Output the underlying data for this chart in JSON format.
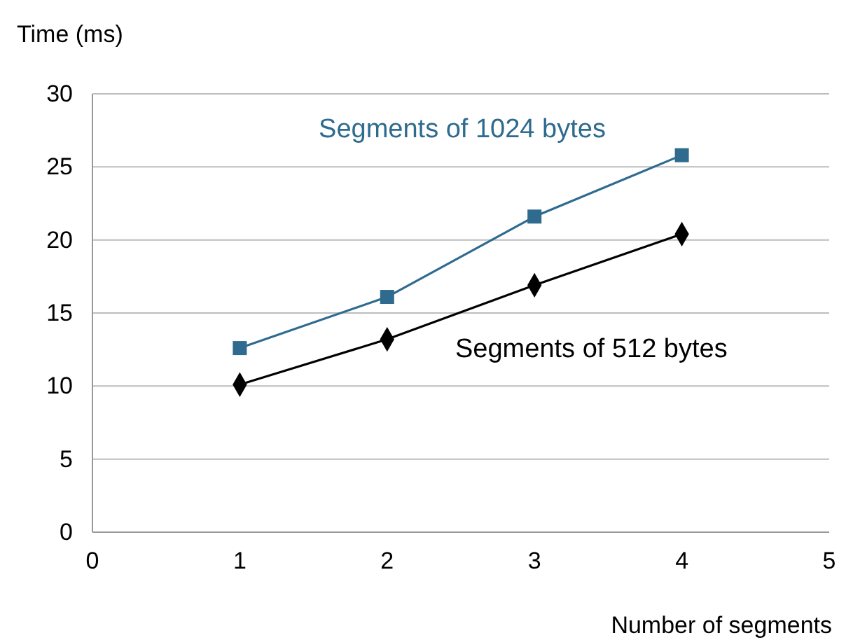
{
  "chart_data": {
    "type": "line",
    "xlabel": "Number of segments",
    "ylabel": "Time (ms)",
    "x": [
      1,
      2,
      3,
      4
    ],
    "series": [
      {
        "name": "Segments of 1024 bytes",
        "color": "#2e6b8f",
        "marker": "square",
        "values": [
          12.6,
          16.1,
          21.6,
          25.8
        ]
      },
      {
        "name": "Segments of 512 bytes",
        "color": "#000000",
        "marker": "diamond",
        "values": [
          10.1,
          13.2,
          16.9,
          20.4
        ]
      }
    ],
    "xlim": [
      0,
      5
    ],
    "xticks": [
      0,
      1,
      2,
      3,
      4,
      5
    ],
    "ylim": [
      0,
      30
    ],
    "yticks": [
      0,
      5,
      10,
      15,
      20,
      25,
      30
    ],
    "grid": "y"
  }
}
